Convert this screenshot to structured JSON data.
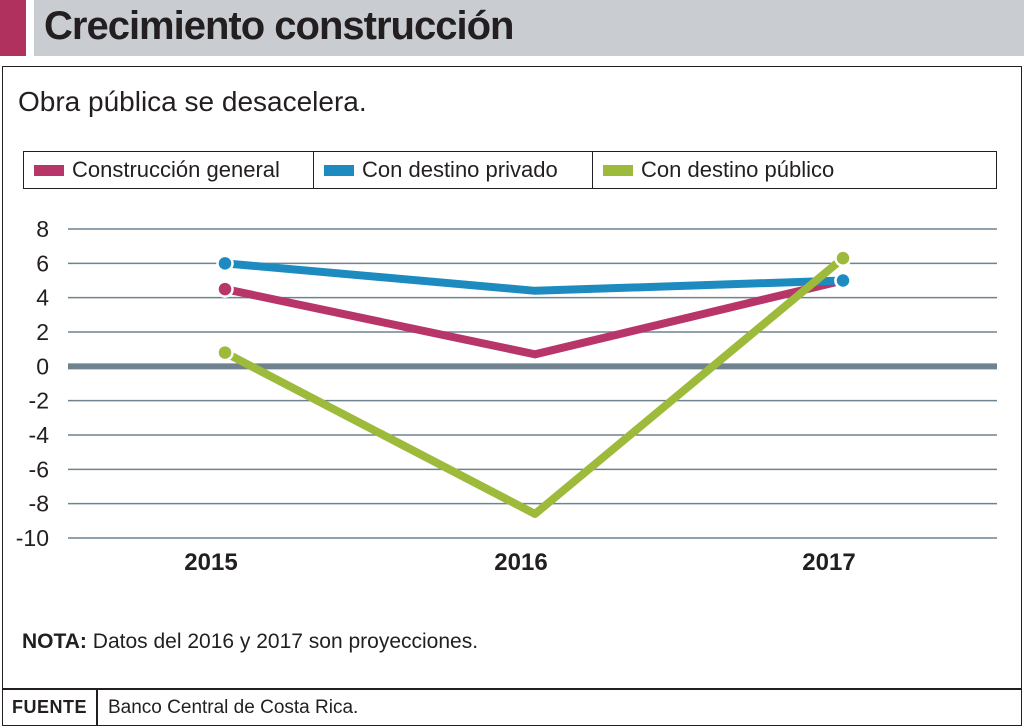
{
  "header": {
    "title": "Crecimiento construcción"
  },
  "colors": {
    "accent": "#b0305e",
    "header_bg": "#c9ccd1",
    "grid": "#6f8290",
    "zero_line": "#6f8290"
  },
  "chart_data": {
    "type": "line",
    "title": "Crecimiento construcción",
    "subtitle": "Obra pública se desacelera.",
    "categories": [
      "2015",
      "2016",
      "2017"
    ],
    "ylim": [
      -10,
      8
    ],
    "yticks": [
      8,
      6,
      4,
      2,
      0,
      -2,
      -4,
      -6,
      -8,
      -10
    ],
    "grid": true,
    "legend_position": "top",
    "series": [
      {
        "name": "Construcción general",
        "color": "#b8356a",
        "values": [
          4.5,
          0.7,
          5.0
        ]
      },
      {
        "name": "Con destino privado",
        "color": "#1d8bbf",
        "values": [
          6.0,
          4.4,
          5.0
        ]
      },
      {
        "name": "Con destino público",
        "color": "#9dba3a",
        "values": [
          0.8,
          -8.6,
          6.3
        ]
      }
    ]
  },
  "legend": [
    {
      "label": "Construcción general",
      "color": "#b8356a"
    },
    {
      "label": "Con destino privado",
      "color": "#1d8bbf"
    },
    {
      "label": "Con destino público",
      "color": "#9dba3a"
    }
  ],
  "nota": {
    "label": "NOTA:",
    "text": "Datos del 2016 y 2017 son proyecciones."
  },
  "fuente": {
    "label": "FUENTE",
    "text": "Banco Central de Costa Rica."
  }
}
